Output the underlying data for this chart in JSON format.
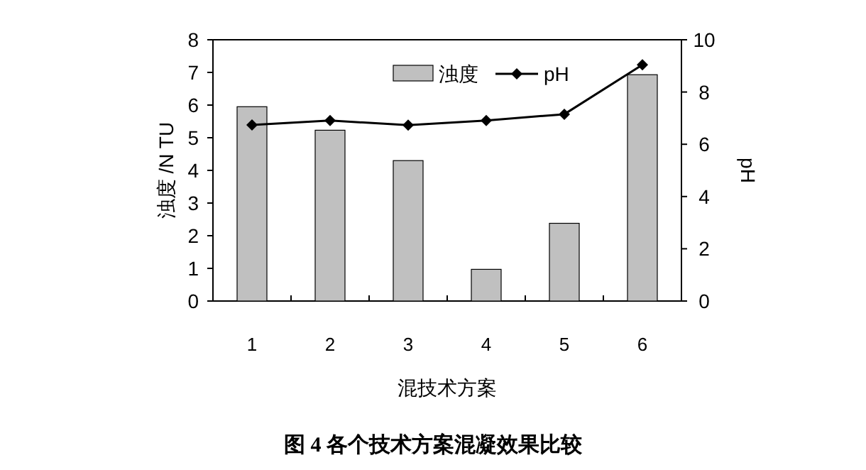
{
  "chart_data": {
    "type": "bar",
    "categories": [
      "1",
      "2",
      "3",
      "4",
      "5",
      "6"
    ],
    "xlabel": "混技术方案",
    "ylabel": "浊度 /N TU",
    "y2label": "pH",
    "series": [
      {
        "name": "浊度",
        "color": "#c0c0c0",
        "values": [
          5.95,
          5.23,
          4.3,
          0.97,
          2.38,
          6.93
        ]
      },
      {
        "name": "pH",
        "type": "line",
        "axis": "y2",
        "color": "#000000",
        "values": [
          6.74,
          6.91,
          6.73,
          6.91,
          7.15,
          9.04
        ]
      }
    ],
    "marker": "diamond",
    "line_style": "solid",
    "legend": "top",
    "ylim": [
      0,
      8
    ],
    "yticks": [
      0,
      1,
      2,
      3,
      4,
      5,
      6,
      7,
      8
    ],
    "y2lim": [
      0,
      10
    ],
    "y2ticks": [
      0,
      2,
      4,
      6,
      8,
      10
    ],
    "annotations": [
      "图 4  各个技术方案混凝效果比较"
    ]
  }
}
